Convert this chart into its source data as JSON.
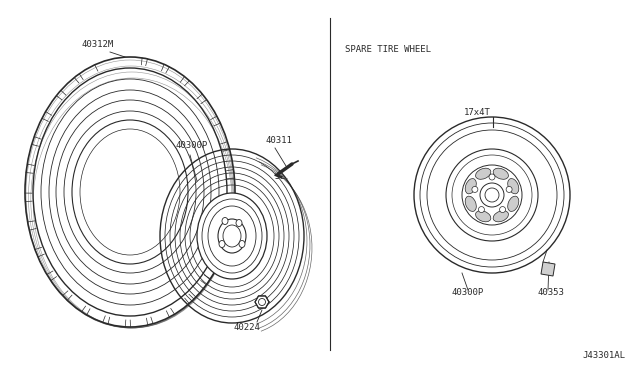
{
  "bg_color": "#ffffff",
  "line_color": "#2a2a2a",
  "text_color": "#2a2a2a",
  "fig_width": 6.4,
  "fig_height": 3.72,
  "title_spare": "SPARE TIRE WHEEL",
  "label_17x4T": "17x4T",
  "label_40312M": "40312M",
  "label_40300P": "40300P",
  "label_40311": "40311",
  "label_40224": "40224",
  "label_40300P_r": "40300P",
  "label_40353": "40353",
  "footer": "J43301AL"
}
